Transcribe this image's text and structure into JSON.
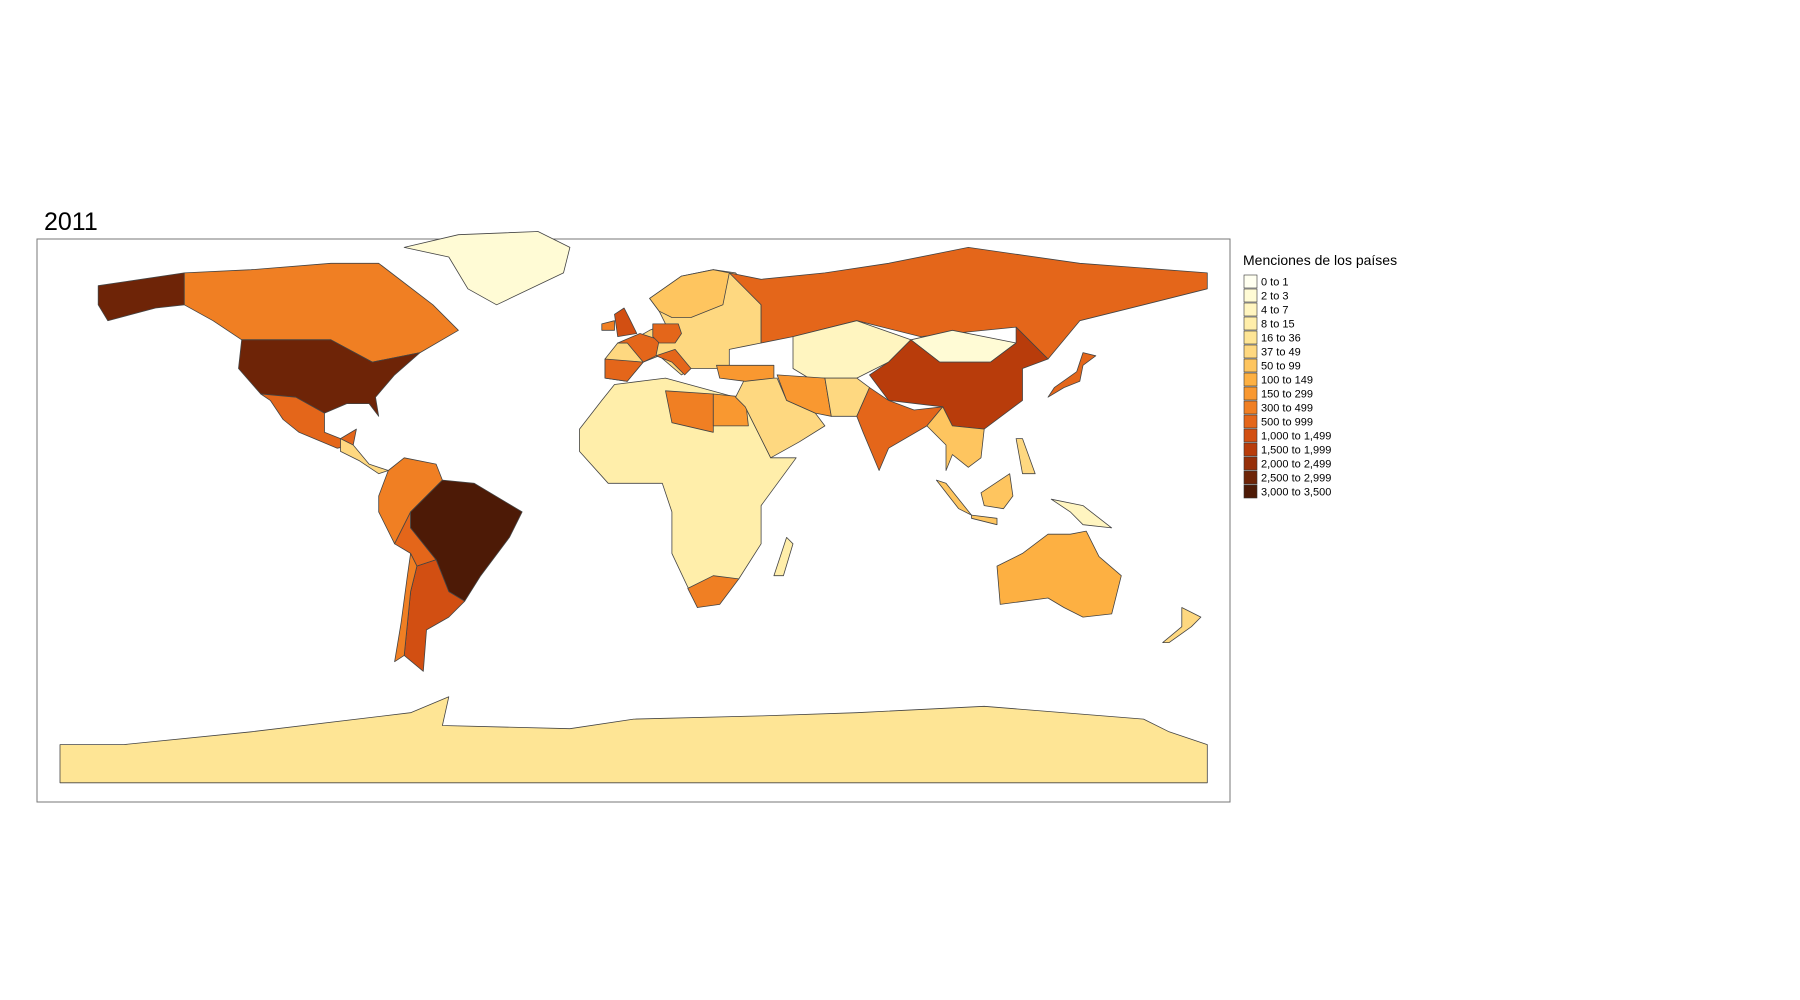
{
  "title": "2011",
  "legend": {
    "title": "Menciones de los países",
    "items": [
      {
        "label": "0 to 1",
        "color": "#fffff0"
      },
      {
        "label": "2 to 3",
        "color": "#fffbd5"
      },
      {
        "label": "4 to 7",
        "color": "#fff5c0"
      },
      {
        "label": "8 to 15",
        "color": "#ffeeaa"
      },
      {
        "label": "16 to 36",
        "color": "#fee595"
      },
      {
        "label": "37 to 49",
        "color": "#fed880"
      },
      {
        "label": "50 to 99",
        "color": "#fec55f"
      },
      {
        "label": "100 to 149",
        "color": "#fdb042"
      },
      {
        "label": "150 to 299",
        "color": "#f99830"
      },
      {
        "label": "300 to 499",
        "color": "#f07f23"
      },
      {
        "label": "500 to 999",
        "color": "#e4661a"
      },
      {
        "label": "1,000 to 1,499",
        "color": "#d24f12"
      },
      {
        "label": "1,500 to 1,999",
        "color": "#b83c0b"
      },
      {
        "label": "2,000 to 2,499",
        "color": "#962f09"
      },
      {
        "label": "2,500 to 2,999",
        "color": "#6e2407"
      },
      {
        "label": "3,000 to 3,500",
        "color": "#4d1a06"
      }
    ]
  }
}
